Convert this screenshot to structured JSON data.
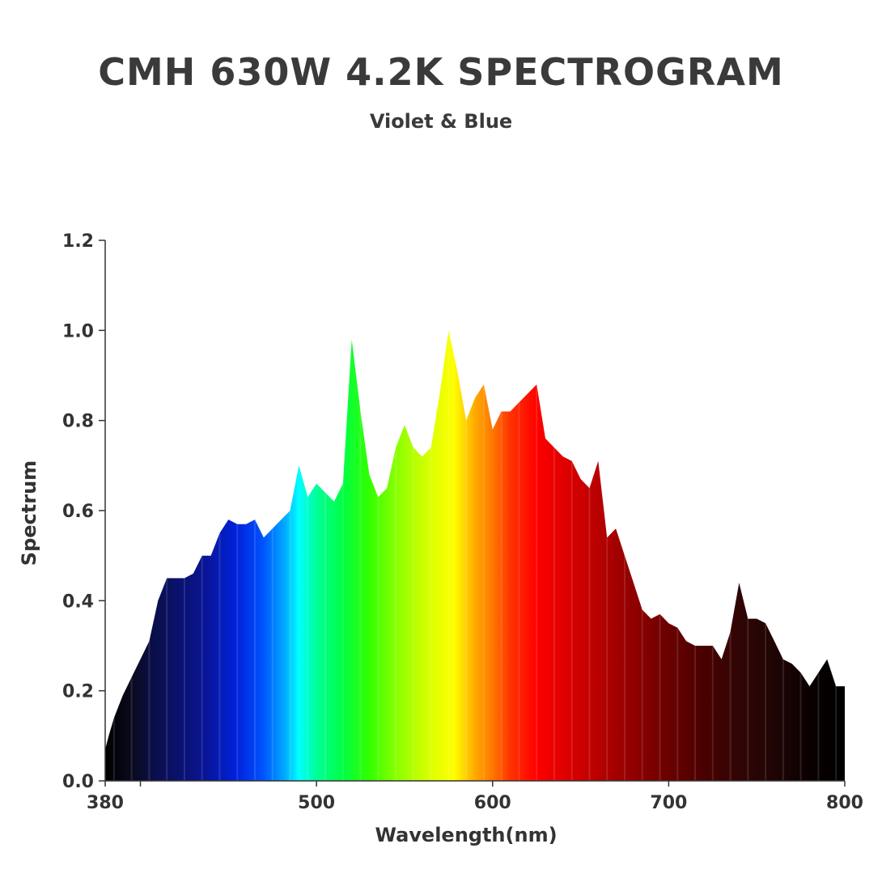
{
  "header": {
    "title": "CMH 630W 4.2K SPECTROGRAM",
    "subtitle": "Violet & Blue"
  },
  "chart_data": {
    "type": "area",
    "title": "CMH 630W 4.2K SPECTROGRAM",
    "subtitle": "Violet & Blue",
    "xlabel": "Wavelength(nm)",
    "ylabel": "Spectrum",
    "xlim": [
      380,
      800
    ],
    "ylim": [
      0,
      1.2
    ],
    "x_ticks": [
      380,
      500,
      600,
      700,
      800
    ],
    "y_ticks": [
      "0.0",
      "0.2",
      "0.4",
      "0.6",
      "0.8",
      "1.0",
      "1.2"
    ],
    "grid": false,
    "fill": "visible-spectrum gradient by wavelength",
    "series": [
      {
        "x": [
          380,
          382,
          385,
          390,
          395,
          400,
          405,
          410,
          415,
          420,
          425,
          430,
          435,
          440,
          445,
          450,
          455,
          460,
          465,
          470,
          475,
          480,
          485,
          490,
          495,
          500,
          505,
          510,
          515,
          520,
          525,
          530,
          535,
          540,
          545,
          550,
          555,
          560,
          565,
          570,
          575,
          580,
          585,
          590,
          595,
          600,
          605,
          610,
          615,
          620,
          625,
          630,
          635,
          640,
          645,
          650,
          655,
          660,
          665,
          670,
          675,
          680,
          685,
          690,
          695,
          700,
          705,
          710,
          715,
          720,
          725,
          730,
          735,
          740,
          745,
          750,
          755,
          760,
          765,
          770,
          775,
          780,
          785,
          790,
          795,
          800
        ],
        "y": [
          0.07,
          0.1,
          0.14,
          0.19,
          0.23,
          0.27,
          0.31,
          0.4,
          0.45,
          0.45,
          0.45,
          0.46,
          0.5,
          0.5,
          0.55,
          0.58,
          0.57,
          0.57,
          0.58,
          0.54,
          0.56,
          0.58,
          0.6,
          0.7,
          0.63,
          0.66,
          0.64,
          0.62,
          0.66,
          0.98,
          0.82,
          0.68,
          0.63,
          0.65,
          0.74,
          0.79,
          0.74,
          0.72,
          0.74,
          0.86,
          1.0,
          0.91,
          0.8,
          0.85,
          0.88,
          0.78,
          0.82,
          0.82,
          0.84,
          0.86,
          0.88,
          0.76,
          0.74,
          0.72,
          0.71,
          0.67,
          0.65,
          0.71,
          0.54,
          0.56,
          0.5,
          0.44,
          0.38,
          0.36,
          0.37,
          0.35,
          0.34,
          0.31,
          0.3,
          0.3,
          0.3,
          0.27,
          0.33,
          0.44,
          0.36,
          0.36,
          0.35,
          0.31,
          0.27,
          0.26,
          0.24,
          0.21,
          0.24,
          0.27,
          0.21,
          0.21
        ]
      }
    ]
  }
}
